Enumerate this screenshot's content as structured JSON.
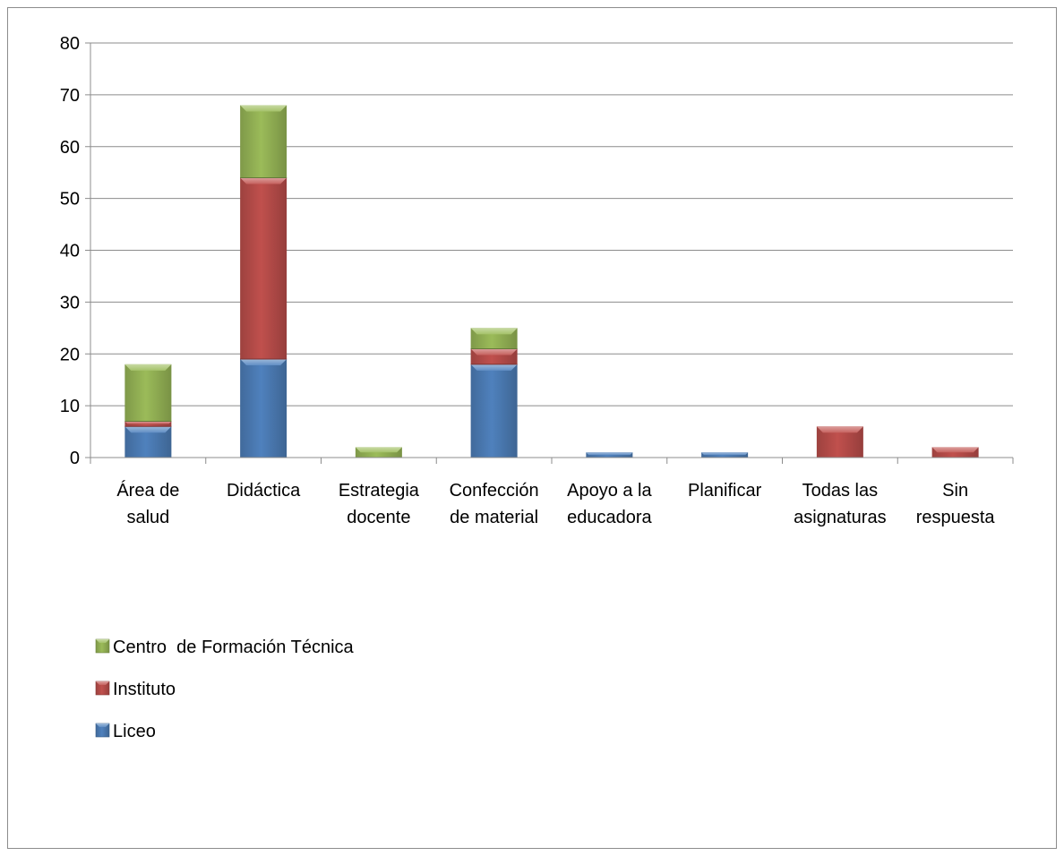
{
  "chart_data": {
    "type": "bar",
    "stacked": true,
    "title": "",
    "xlabel": "",
    "ylabel": "",
    "ylim": [
      0,
      80
    ],
    "yticks": [
      0,
      10,
      20,
      30,
      40,
      50,
      60,
      70,
      80
    ],
    "grid": true,
    "legend_position": "bottom-left",
    "categories": [
      [
        "Área de",
        "salud"
      ],
      [
        "Didáctica"
      ],
      [
        "Estrategia",
        "docente"
      ],
      [
        "Confección",
        "de material"
      ],
      [
        "Apoyo a la",
        "educadora"
      ],
      [
        "Planificar"
      ],
      [
        "Todas las",
        "asignaturas"
      ],
      [
        "Sin",
        "respuesta"
      ]
    ],
    "series": [
      {
        "name": "Liceo",
        "color": "#4f81bd",
        "values": [
          6,
          19,
          0,
          18,
          1,
          1,
          0,
          0
        ]
      },
      {
        "name": "Instituto",
        "color": "#c0504d",
        "values": [
          1,
          35,
          0,
          3,
          0,
          0,
          6,
          2
        ]
      },
      {
        "name": "Centro  de Formación Técnica",
        "color": "#9bbb59",
        "values": [
          11,
          14,
          2,
          4,
          0,
          0,
          0,
          0
        ]
      }
    ],
    "legend_order": [
      "Centro  de Formación Técnica",
      "Instituto",
      "Liceo"
    ]
  }
}
